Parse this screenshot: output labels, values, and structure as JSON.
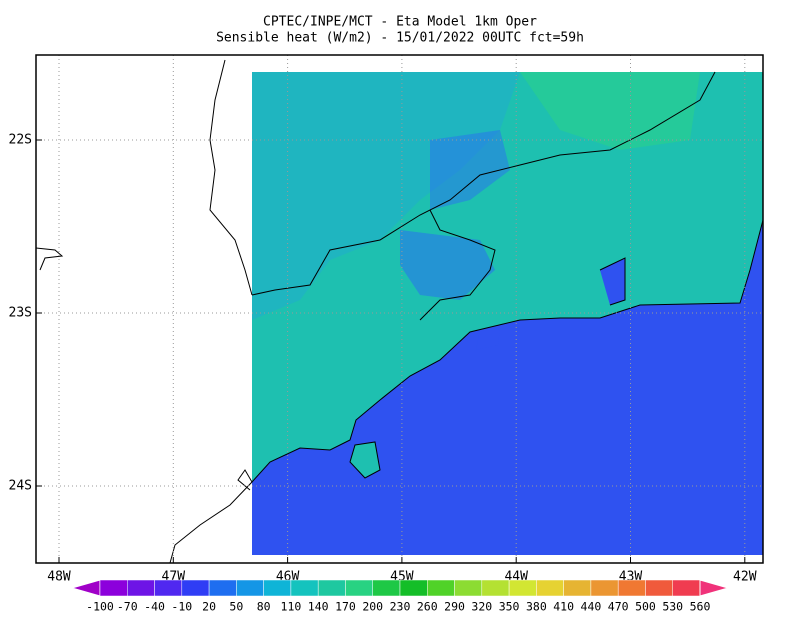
{
  "title": [
    "CPTEC/INPE/MCT -  Eta Model 1km Oper",
    "Sensible heat (W/m2) - 15/01/2022 00UTC fct=59h"
  ],
  "lat_labels": [
    "22S",
    "23S",
    "24S"
  ],
  "lon_labels": [
    "48W",
    "47W",
    "46W",
    "45W",
    "44W",
    "43W",
    "42W"
  ],
  "colorbar": {
    "labels": [
      -100,
      -70,
      -40,
      -10,
      20,
      50,
      80,
      110,
      140,
      170,
      200,
      230,
      260,
      290,
      320,
      350,
      380,
      410,
      440,
      470,
      500,
      530,
      560
    ],
    "colors": [
      "#a000c8",
      "#8c00dc",
      "#6e14e6",
      "#5028f0",
      "#2f3df5",
      "#1e6ef0",
      "#1496e6",
      "#0fb4d7",
      "#14c3be",
      "#1ec8a0",
      "#28d282",
      "#1ec846",
      "#14be28",
      "#50d228",
      "#8cdc32",
      "#b4e132",
      "#d2e632",
      "#e6d232",
      "#e6b432",
      "#eb9632",
      "#f07832",
      "#f05a3c",
      "#f03c50",
      "#f0327a"
    ]
  }
}
